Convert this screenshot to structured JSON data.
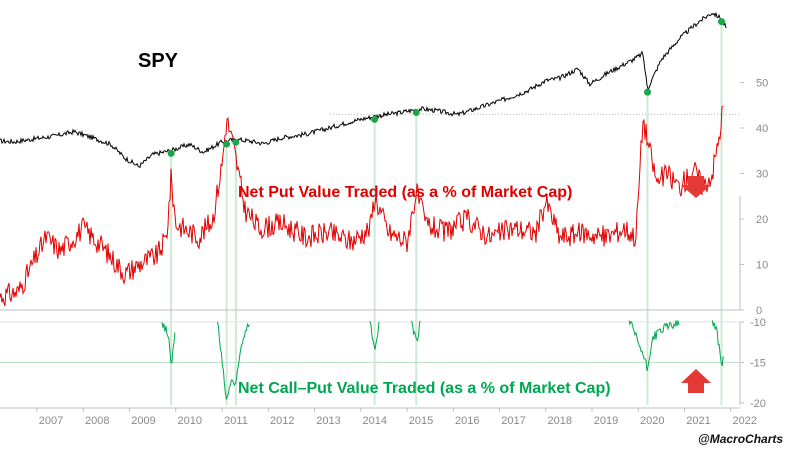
{
  "colors": {
    "spy": "#000000",
    "put": "#e00000",
    "call": "#00a651",
    "marker": "#1aa64b",
    "arrow": "#e53935",
    "axis": "#bfbfbf",
    "vline": "#cfe9d5"
  },
  "chart_data": [
    {
      "type": "line",
      "title": "SPY",
      "series": [
        {
          "name": "SPY",
          "x": [
            2006.2,
            2006.5,
            2007.0,
            2007.4,
            2007.8,
            2008.3,
            2008.6,
            2008.9,
            2009.2,
            2009.5,
            2009.9,
            2010.3,
            2010.6,
            2011.0,
            2011.3,
            2011.6,
            2011.9,
            2012.3,
            2012.8,
            2013.3,
            2013.8,
            2014.3,
            2014.8,
            2015.3,
            2015.6,
            2016.1,
            2016.6,
            2017.1,
            2017.6,
            2018.0,
            2018.3,
            2018.7,
            2018.95,
            2019.4,
            2019.9,
            2020.1,
            2020.2,
            2020.5,
            2020.9,
            2021.3,
            2021.6,
            2021.8,
            2021.9
          ],
          "values": [
            4.0,
            3.9,
            4.3,
            4.6,
            5.1,
            4.2,
            3.6,
            2.0,
            1.0,
            2.4,
            2.9,
            3.6,
            2.7,
            3.9,
            4.2,
            4.0,
            3.7,
            4.4,
            4.8,
            5.5,
            6.3,
            6.9,
            7.3,
            7.8,
            7.6,
            7.1,
            8.0,
            8.9,
            9.9,
            11.1,
            11.4,
            12.5,
            10.7,
            12.2,
            13.6,
            14.3,
            10.1,
            13.6,
            16.1,
            18.0,
            19.1,
            18.4,
            17.3
          ]
        }
      ],
      "markers": [
        2009.9,
        2011.1,
        2011.3,
        2014.3,
        2015.2,
        2020.2,
        2021.8
      ]
    },
    {
      "type": "line",
      "title": "Net Put Value Traded (as a % of Market Cap)",
      "series": [
        {
          "name": "Net Put Value Traded",
          "x": [
            2006.2,
            2006.6,
            2007.0,
            2007.2,
            2007.5,
            2008.0,
            2008.4,
            2008.9,
            2009.2,
            2009.6,
            2009.8,
            2009.9,
            2010.0,
            2010.5,
            2010.8,
            2011.0,
            2011.1,
            2011.25,
            2011.5,
            2011.8,
            2012.3,
            2012.8,
            2013.3,
            2013.8,
            2014.2,
            2014.3,
            2014.6,
            2015.0,
            2015.2,
            2015.4,
            2015.8,
            2016.3,
            2016.8,
            2017.3,
            2017.8,
            2018.0,
            2018.3,
            2018.8,
            2019.3,
            2019.7,
            2019.95,
            2020.1,
            2020.25,
            2020.4,
            2020.6,
            2020.9,
            2021.2,
            2021.4,
            2021.6,
            2021.75,
            2021.85
          ],
          "values": [
            3,
            4,
            12,
            16,
            13,
            18,
            14,
            8,
            10,
            12,
            16,
            29,
            19,
            16,
            20,
            32,
            42,
            36,
            22,
            18,
            19,
            16,
            17,
            15,
            18,
            25,
            17,
            15,
            26,
            19,
            17,
            20,
            16,
            18,
            17,
            24,
            16,
            17,
            16,
            18,
            16,
            42,
            35,
            28,
            30,
            27,
            31,
            27,
            30,
            38,
            46
          ]
        }
      ],
      "ylim": [
        0,
        50
      ],
      "yticks": [
        "50",
        "40",
        "30",
        "20",
        "10",
        "0"
      ],
      "reference_line": 43
    },
    {
      "type": "line",
      "title": "Net Call–Put Value Traded (as a % of Market Cap)",
      "series": [
        {
          "name": "Net Call-Put Value Traded",
          "x": [
            2009.7,
            2009.85,
            2009.9,
            2010.0,
            2010.9,
            2011.0,
            2011.1,
            2011.2,
            2011.3,
            2011.4,
            2011.5,
            2011.6,
            2014.2,
            2014.3,
            2014.4,
            2015.1,
            2015.2,
            2015.3,
            2019.8,
            2020.1,
            2020.2,
            2020.3,
            2020.5,
            2020.9,
            2021.6,
            2021.7,
            2021.8,
            2021.85
          ],
          "values": [
            -9.8,
            -12,
            -15.5,
            -9.8,
            -9.8,
            -15,
            -19.9,
            -17,
            -18,
            -13.5,
            -11,
            -9.8,
            -9.8,
            -13.8,
            -9.8,
            -9.8,
            -12.5,
            -9.8,
            -9.8,
            -14,
            -16,
            -12,
            -11,
            -9.8,
            -9.8,
            -11,
            -15.3,
            -14
          ]
        }
      ],
      "ylim": [
        -20,
        -10
      ],
      "yticks": [
        "-10",
        "-15",
        "-20"
      ],
      "reference_line": -15
    }
  ],
  "axis": {
    "years": [
      "2007",
      "2008",
      "2009",
      "2010",
      "2011",
      "2012",
      "2013",
      "2014",
      "2015",
      "2016",
      "2017",
      "2018",
      "2019",
      "2020",
      "2021",
      "2022"
    ]
  },
  "labels": {
    "spy": "SPY",
    "put_title": "Net Put Value Traded (as a % of Market Cap)",
    "call_title": "Net Call–Put Value Traded (as a % of Market Cap)",
    "credit": "@MacroCharts"
  }
}
